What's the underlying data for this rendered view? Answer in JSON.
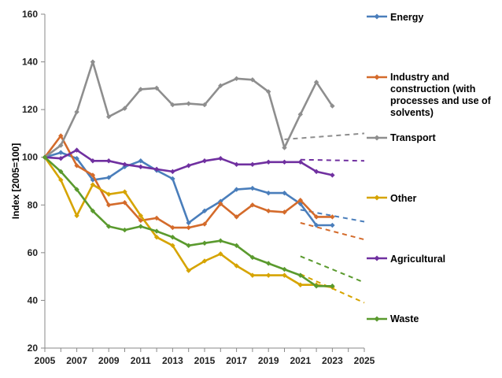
{
  "chart_data": {
    "type": "line",
    "ylabel": "Index [2005=100]",
    "xlim": [
      2005,
      2025
    ],
    "ylim": [
      20,
      160
    ],
    "x_ticks": [
      "2005",
      "2007",
      "2009",
      "2011",
      "2013",
      "2015",
      "2017",
      "2019",
      "2021",
      "2023",
      "2025"
    ],
    "y_ticks": [
      "20",
      "40",
      "60",
      "80",
      "100",
      "120",
      "140",
      "160"
    ],
    "grid": false,
    "legend_position": "right",
    "x": [
      2005,
      2006,
      2007,
      2008,
      2009,
      2010,
      2011,
      2012,
      2013,
      2014,
      2015,
      2016,
      2017,
      2018,
      2019,
      2020,
      2021,
      2022,
      2023
    ],
    "series": [
      {
        "name": "Energy",
        "color": "#4a7ebb",
        "values": [
          100,
          102,
          99.5,
          90.5,
          91.5,
          96,
          98.5,
          94.5,
          91,
          72.5,
          77.5,
          81.5,
          86.5,
          87,
          85,
          85,
          80.5,
          71.5,
          71.5
        ],
        "projection": {
          "x": [
            2021,
            2025
          ],
          "values": [
            78,
            73
          ]
        }
      },
      {
        "name": "Industry and construction (with processes and use of solvents)",
        "color": "#d46b2b",
        "values": [
          100,
          109,
          96.5,
          92.5,
          80,
          81,
          73.5,
          74.5,
          70.5,
          70.5,
          72,
          80.5,
          75,
          80,
          77.5,
          77,
          82,
          75,
          75
        ],
        "projection": {
          "x": [
            2021,
            2025
          ],
          "values": [
            72.5,
            65.5
          ]
        }
      },
      {
        "name": "Transport",
        "color": "#8e8e8e",
        "values": [
          100,
          105,
          119,
          140,
          117,
          120.5,
          128.5,
          129,
          122,
          122.5,
          122,
          130,
          133,
          132.5,
          127.5,
          104,
          118,
          131.5,
          121.5
        ],
        "projection": {
          "x": [
            2020,
            2025
          ],
          "values": [
            107.5,
            110
          ]
        }
      },
      {
        "name": "Other",
        "color": "#d6a400",
        "values": [
          100,
          90.5,
          75.5,
          88.5,
          84.5,
          85.5,
          75.5,
          66.5,
          63,
          52.5,
          56.5,
          59.5,
          54.5,
          50.5,
          50.5,
          50.5,
          46.5,
          46.5,
          45.5
        ],
        "projection": {
          "x": [
            2021,
            2025
          ],
          "values": [
            51,
            39
          ]
        }
      },
      {
        "name": "Agricultural",
        "color": "#7030a0",
        "values": [
          100,
          99.5,
          103,
          98.5,
          98.5,
          97,
          96,
          95,
          94,
          96.5,
          98.5,
          99.5,
          97,
          97,
          98,
          98,
          98,
          94,
          92.5
        ],
        "projection": {
          "x": [
            2021,
            2025
          ],
          "values": [
            99,
            98.5
          ]
        }
      },
      {
        "name": "Waste",
        "color": "#5a9a2e",
        "values": [
          100,
          94,
          86.5,
          77.5,
          71,
          69.5,
          71,
          69,
          66.5,
          63,
          64,
          65,
          63,
          58,
          55.5,
          53,
          50.5,
          46,
          46
        ],
        "projection": {
          "x": [
            2021,
            2025
          ],
          "values": [
            58.5,
            47.5
          ]
        }
      }
    ]
  },
  "legend": [
    {
      "label": "Energy"
    },
    {
      "label": "Industry and construction (with processes and use of solvents)"
    },
    {
      "label": "Transport"
    },
    {
      "label": "Other"
    },
    {
      "label": "Agricultural"
    },
    {
      "label": "Waste"
    }
  ]
}
